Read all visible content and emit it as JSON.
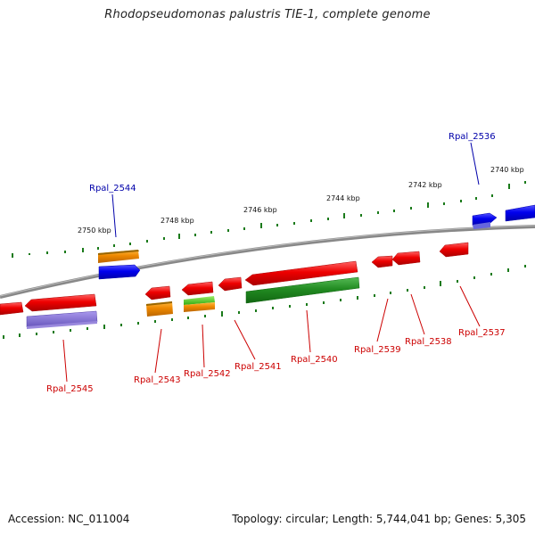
{
  "title": "Rhodopseudomonas palustris TIE-1, complete genome",
  "footer": {
    "accession": "Accession: NC_011004",
    "summary": "Topology: circular; Length: 5,744,041 bp; Genes: 5,305"
  },
  "scale_labels": [
    "2740 kbp",
    "2742 kbp",
    "2744 kbp",
    "2746 kbp",
    "2748 kbp",
    "2750 kbp"
  ],
  "genes": [
    {
      "label": "Rpal_2536",
      "color": "#0000aa"
    },
    {
      "label": "Rpal_2537",
      "color": "#cc0000"
    },
    {
      "label": "Rpal_2538",
      "color": "#cc0000"
    },
    {
      "label": "Rpal_2539",
      "color": "#cc0000"
    },
    {
      "label": "Rpal_2540",
      "color": "#cc0000"
    },
    {
      "label": "Rpal_2541",
      "color": "#cc0000"
    },
    {
      "label": "Rpal_2542",
      "color": "#cc0000"
    },
    {
      "label": "Rpal_2543",
      "color": "#cc0000"
    },
    {
      "label": "Rpal_2544",
      "color": "#0000aa"
    },
    {
      "label": "Rpal_2545",
      "color": "#cc0000"
    }
  ],
  "colors": {
    "backbone": "#808080",
    "tick": "#1a7a1a",
    "red": "#ee0000",
    "blue": "#0000dd",
    "orange": "#ee8800",
    "green": "#228b22",
    "lightgreen": "#44cc22",
    "purple": "#7766cc"
  }
}
